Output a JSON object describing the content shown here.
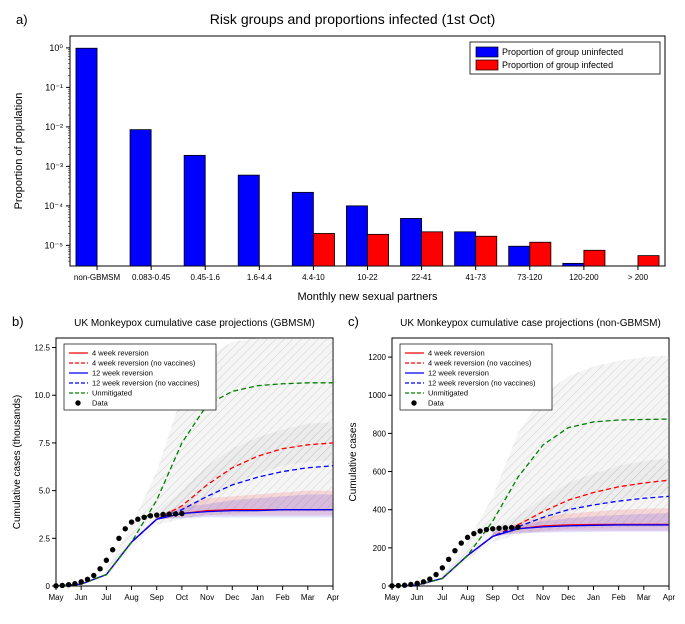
{
  "panel_a": {
    "label": "a)",
    "title": "Risk groups and proportions infected (1st Oct)",
    "xlabel": "Monthly new sexual partners",
    "ylabel": "Proportion of population",
    "type": "bar",
    "ylim": [
      3e-06,
      2
    ],
    "yticks": [
      1e-05,
      0.0001,
      0.001,
      0.01,
      0.1,
      1
    ],
    "ytick_labels": [
      "10⁻⁵",
      "10⁻⁴",
      "10⁻³",
      "10⁻²",
      "10⁻¹",
      "10⁰"
    ],
    "categories": [
      "non-GBMSM",
      "0.083-0.45",
      "0.45-1.6",
      "1.6-4.4",
      "4.4-10",
      "10-22",
      "22-41",
      "41-73",
      "73-120",
      "120-200",
      "> 200"
    ],
    "uninfected_values": [
      0.98,
      0.0085,
      0.0019,
      0.0006,
      0.00022,
      0.0001,
      4.8e-05,
      2.2e-05,
      9.5e-06,
      3.5e-06,
      1.8e-06
    ],
    "infected_values": [
      0,
      0,
      0,
      0,
      2e-05,
      1.9e-05,
      2.2e-05,
      1.7e-05,
      1.2e-05,
      7.5e-06,
      5.5e-06
    ],
    "bar_colors": {
      "uninfected": "#0000ff",
      "infected": "#ff0000"
    },
    "stroke": "#000000",
    "legend": {
      "uninfected": "Proportion of group uninfected",
      "infected": "Proportion of group infected"
    },
    "background_color": "#ffffff"
  },
  "panel_b": {
    "label": "b)",
    "title": "UK Monkeypox cumulative case projections (GBMSM)",
    "xlabel_months": [
      "May",
      "Jun",
      "Jul",
      "Aug",
      "Sep",
      "Oct",
      "Nov",
      "Dec",
      "Jan",
      "Feb",
      "Mar",
      "Apr"
    ],
    "ylabel": "Cumulative cases (thousands)",
    "type": "line",
    "ylim": [
      0,
      13
    ],
    "yticks": [
      0,
      2.5,
      5.0,
      7.5,
      10.0,
      12.5
    ],
    "ytick_labels": [
      "0",
      "2.5",
      "5.0",
      "7.5",
      "10.0",
      "12.5"
    ],
    "xpoints": [
      0,
      1,
      2,
      3,
      4,
      5,
      6,
      7,
      8,
      9,
      10,
      11
    ],
    "series": {
      "rev4": {
        "label": "4 week reversion",
        "color": "#ff0000",
        "dash": "solid",
        "vals": [
          0,
          0.1,
          0.6,
          2.3,
          3.5,
          3.8,
          3.95,
          4.0,
          4.0,
          4.0,
          4.0,
          4.0
        ]
      },
      "rev4novax": {
        "label": "4 week reversion (no vaccines)",
        "color": "#ff0000",
        "dash": "dash",
        "vals": [
          0,
          0.1,
          0.6,
          2.3,
          3.5,
          4.2,
          5.3,
          6.2,
          6.8,
          7.2,
          7.4,
          7.5
        ]
      },
      "rev12": {
        "label": "12 week reversion",
        "color": "#0000ff",
        "dash": "solid",
        "vals": [
          0,
          0.1,
          0.6,
          2.3,
          3.5,
          3.8,
          3.9,
          3.95,
          3.95,
          4.0,
          4.0,
          4.0
        ]
      },
      "rev12novax": {
        "label": "12 week reversion (no vaccines)",
        "color": "#0000ff",
        "dash": "dash",
        "vals": [
          0,
          0.1,
          0.6,
          2.3,
          3.5,
          4.0,
          4.7,
          5.3,
          5.7,
          6.0,
          6.2,
          6.3
        ]
      },
      "unmitigated": {
        "label": "Unmitigated",
        "color": "#008000",
        "dash": "dash",
        "vals": [
          0,
          0.1,
          0.6,
          2.3,
          4.5,
          7.5,
          9.5,
          10.2,
          10.5,
          10.6,
          10.65,
          10.65
        ]
      }
    },
    "data_points": {
      "label": "Data",
      "color": "#000000",
      "x": [
        0,
        0.25,
        0.5,
        0.75,
        1,
        1.25,
        1.5,
        1.75,
        2,
        2.25,
        2.5,
        2.75,
        3,
        3.25,
        3.5,
        3.75,
        4,
        4.25,
        4.5,
        4.75,
        5
      ],
      "y": [
        0.01,
        0.03,
        0.07,
        0.12,
        0.22,
        0.35,
        0.55,
        0.9,
        1.35,
        1.9,
        2.5,
        3.0,
        3.35,
        3.5,
        3.6,
        3.68,
        3.72,
        3.75,
        3.77,
        3.78,
        3.8
      ]
    },
    "ci_bands": [
      {
        "color": "#ff0000",
        "opacity": 0.12,
        "x": [
          4,
          5,
          6,
          7,
          8,
          9,
          10,
          11
        ],
        "lo": [
          3.5,
          3.6,
          3.7,
          3.7,
          3.7,
          3.7,
          3.7,
          3.7
        ],
        "hi": [
          3.7,
          4.2,
          4.6,
          4.7,
          4.8,
          4.9,
          5.0,
          5.0
        ]
      },
      {
        "color": "#0000ff",
        "opacity": 0.12,
        "x": [
          4,
          5,
          6,
          7,
          8,
          9,
          10,
          11
        ],
        "lo": [
          3.5,
          3.55,
          3.6,
          3.6,
          3.6,
          3.6,
          3.6,
          3.6
        ],
        "hi": [
          3.7,
          4.1,
          4.3,
          4.5,
          4.6,
          4.7,
          4.8,
          4.8
        ]
      }
    ],
    "hatch_bands": [
      {
        "x": [
          2,
          3,
          4,
          5,
          6,
          7,
          8,
          9,
          10,
          11
        ],
        "lo": [
          0.5,
          2.0,
          3.2,
          3.5,
          3.7,
          3.8,
          3.9,
          3.9,
          3.9,
          3.9
        ],
        "hi": [
          0.9,
          3.2,
          6.0,
          10.0,
          12.0,
          12.8,
          13.0,
          13.0,
          13.0,
          13.0
        ]
      },
      {
        "x": [
          4,
          5,
          6,
          7,
          8,
          9,
          10,
          11
        ],
        "lo": [
          3.5,
          3.7,
          4.5,
          5.3,
          5.9,
          6.3,
          6.5,
          6.6
        ],
        "hi": [
          3.9,
          5.0,
          6.3,
          7.2,
          7.8,
          8.2,
          8.5,
          8.6
        ]
      }
    ]
  },
  "panel_c": {
    "label": "c)",
    "title": "UK Monkeypox cumulative case projections (non-GBMSM)",
    "xlabel_months": [
      "May",
      "Jun",
      "Jul",
      "Aug",
      "Sep",
      "Oct",
      "Nov",
      "Dec",
      "Jan",
      "Feb",
      "Mar",
      "Apr"
    ],
    "ylabel": "Cumulative cases",
    "type": "line",
    "ylim": [
      0,
      1300
    ],
    "yticks": [
      0,
      200,
      400,
      600,
      800,
      1000,
      1200
    ],
    "ytick_labels": [
      "0",
      "200",
      "400",
      "600",
      "800",
      "1000",
      "1200"
    ],
    "xpoints": [
      0,
      1,
      2,
      3,
      4,
      5,
      6,
      7,
      8,
      9,
      10,
      11
    ],
    "series": {
      "rev4": {
        "label": "4 week reversion",
        "color": "#ff0000",
        "dash": "solid",
        "vals": [
          0,
          5,
          40,
          160,
          260,
          300,
          315,
          320,
          322,
          323,
          323,
          323
        ]
      },
      "rev4novax": {
        "label": "4 week reversion (no vaccines)",
        "color": "#ff0000",
        "dash": "dash",
        "vals": [
          0,
          5,
          40,
          160,
          260,
          320,
          390,
          450,
          490,
          520,
          540,
          555
        ]
      },
      "rev12": {
        "label": "12 week reversion",
        "color": "#0000ff",
        "dash": "solid",
        "vals": [
          0,
          5,
          40,
          160,
          260,
          300,
          310,
          315,
          318,
          320,
          320,
          320
        ]
      },
      "rev12novax": {
        "label": "12 week reversion (no vaccines)",
        "color": "#0000ff",
        "dash": "dash",
        "vals": [
          0,
          5,
          40,
          160,
          260,
          310,
          360,
          400,
          425,
          445,
          460,
          470
        ]
      },
      "unmitigated": {
        "label": "Unmitigated",
        "color": "#008000",
        "dash": "dash",
        "vals": [
          0,
          5,
          40,
          160,
          340,
          570,
          740,
          830,
          860,
          870,
          873,
          875
        ]
      }
    },
    "data_points": {
      "label": "Data",
      "color": "#000000",
      "x": [
        0,
        0.25,
        0.5,
        0.75,
        1,
        1.25,
        1.5,
        1.75,
        2,
        2.25,
        2.5,
        2.75,
        3,
        3.25,
        3.5,
        3.75,
        4,
        4.25,
        4.5,
        4.75,
        5
      ],
      "y": [
        1,
        2,
        4,
        8,
        14,
        22,
        36,
        60,
        95,
        140,
        185,
        225,
        255,
        275,
        288,
        296,
        300,
        303,
        305,
        306,
        308
      ]
    },
    "ci_bands": [
      {
        "color": "#ff0000",
        "opacity": 0.12,
        "x": [
          4,
          5,
          6,
          7,
          8,
          9,
          10,
          11
        ],
        "lo": [
          260,
          280,
          285,
          290,
          290,
          290,
          290,
          290
        ],
        "hi": [
          280,
          330,
          360,
          380,
          390,
          400,
          405,
          408
        ]
      },
      {
        "color": "#0000ff",
        "opacity": 0.12,
        "x": [
          4,
          5,
          6,
          7,
          8,
          9,
          10,
          11
        ],
        "lo": [
          260,
          275,
          280,
          282,
          284,
          285,
          285,
          285
        ],
        "hi": [
          280,
          320,
          340,
          355,
          365,
          372,
          378,
          382
        ]
      }
    ],
    "hatch_bands": [
      {
        "x": [
          2,
          3,
          4,
          5,
          6,
          7,
          8,
          9,
          10,
          11
        ],
        "lo": [
          30,
          140,
          230,
          270,
          290,
          300,
          305,
          308,
          310,
          310
        ],
        "hi": [
          60,
          230,
          470,
          800,
          1000,
          1100,
          1150,
          1180,
          1200,
          1210
        ]
      },
      {
        "x": [
          4,
          5,
          6,
          7,
          8,
          9,
          10,
          11
        ],
        "lo": [
          260,
          290,
          330,
          380,
          420,
          450,
          470,
          485
        ],
        "hi": [
          290,
          370,
          460,
          540,
          590,
          630,
          655,
          670
        ]
      }
    ]
  }
}
